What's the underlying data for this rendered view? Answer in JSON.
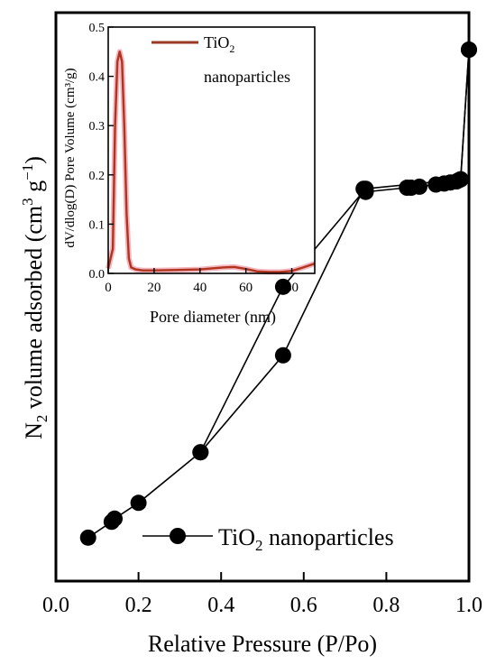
{
  "chart_data": [
    {
      "type": "line",
      "xlabel": "Relative Pressure (P/Po)",
      "ylabel_main": "N",
      "ylabel_sub": "2",
      "ylabel_tail": " volume adsorbed (cm",
      "ylabel_sup1": "3",
      "ylabel_mid": " g",
      "ylabel_sup2": "−1",
      "ylabel_end": ")",
      "xlim": [
        0,
        1.0
      ],
      "x_ticks": [
        "0.0",
        "0.2",
        "0.4",
        "0.6",
        "0.8",
        "1.0"
      ],
      "y_ticks_shown": false,
      "legend": {
        "position": "bottom-right",
        "prefix": "TiO",
        "sub": "2",
        "suffix": " nanoparticles"
      },
      "series": [
        {
          "marker": "circle",
          "color": "#000000",
          "x": [
            0.078,
            0.135,
            0.142,
            0.2,
            0.35,
            0.55,
            0.745,
            0.75,
            0.85,
            0.86,
            0.88,
            0.92,
            0.94,
            0.955,
            0.97,
            0.975,
            0.98,
            1.0
          ],
          "y": [
            0.007,
            0.022,
            0.025,
            0.04,
            0.088,
            0.18,
            0.338,
            0.335,
            0.339,
            0.339,
            0.34,
            0.342,
            0.343,
            0.344,
            0.345,
            0.346,
            0.347,
            0.47
          ],
          "desorption_x": [
            1.0,
            0.98,
            0.75,
            0.55,
            0.35
          ],
          "desorption_y": [
            0.47,
            0.347,
            0.338,
            0.245,
            0.088
          ]
        }
      ]
    },
    {
      "type": "line",
      "xlabel": "Pore diameter (nm)",
      "ylabel": "dV/dlog(D) Pore Volume (cm³/g)",
      "xlim": [
        0,
        90
      ],
      "ylim": [
        0,
        0.5
      ],
      "x_ticks": [
        "0",
        "20",
        "40",
        "60",
        "80"
      ],
      "y_ticks": [
        "0.0",
        "0.1",
        "0.2",
        "0.3",
        "0.4",
        "0.5"
      ],
      "legend": {
        "position": "top-right",
        "prefix": "TiO",
        "sub": "2",
        "line2": "nanoparticles"
      },
      "series": [
        {
          "color": "#b0341e",
          "x": [
            0,
            2,
            3,
            4,
            5,
            6,
            7,
            8,
            9,
            10,
            12,
            15,
            20,
            30,
            40,
            50,
            55,
            60,
            65,
            70,
            75,
            80,
            85,
            90
          ],
          "y": [
            0.01,
            0.05,
            0.3,
            0.43,
            0.45,
            0.43,
            0.3,
            0.12,
            0.03,
            0.012,
            0.008,
            0.006,
            0.006,
            0.007,
            0.008,
            0.012,
            0.013,
            0.009,
            0.004,
            0.003,
            0.003,
            0.005,
            0.012,
            0.02
          ]
        }
      ]
    }
  ]
}
